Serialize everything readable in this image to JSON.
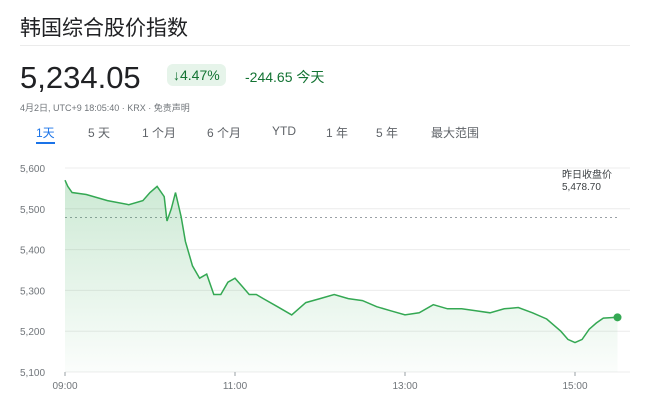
{
  "title": "韩国综合股价指数",
  "price": "5,234.05",
  "change_pct": "4.47%",
  "change_abs": "-244.65",
  "change_period": "今天",
  "meta": "4月2日, UTC+9 18:05:40 · KRX · 免责声明",
  "tabs": [
    "1天",
    "5 天",
    "1 个月",
    "6 个月",
    "YTD",
    "1 年",
    "5 年",
    "最大范围"
  ],
  "active_tab": "1天",
  "prev_close": {
    "label": "昨日收盘价",
    "value": "5,478.70"
  },
  "colors": {
    "down": "#137333",
    "line": "#34a853"
  },
  "chart_data": {
    "type": "area",
    "yticks": [
      "5,600",
      "5,500",
      "5,400",
      "5,300",
      "5,200",
      "5,100"
    ],
    "xticks": [
      "09:00",
      "11:00",
      "13:00",
      "15:00"
    ],
    "ylim": [
      5100,
      5600
    ],
    "xlim": [
      "09:00",
      "15:30"
    ],
    "reference_line": 5478.7,
    "grid": true,
    "points": [
      [
        "09:00",
        5570
      ],
      [
        "09:02",
        5555
      ],
      [
        "09:05",
        5540
      ],
      [
        "09:15",
        5535
      ],
      [
        "09:30",
        5520
      ],
      [
        "09:45",
        5510
      ],
      [
        "09:55",
        5520
      ],
      [
        "10:00",
        5540
      ],
      [
        "10:05",
        5555
      ],
      [
        "10:10",
        5530
      ],
      [
        "10:12",
        5470
      ],
      [
        "10:15",
        5500
      ],
      [
        "10:18",
        5540
      ],
      [
        "10:22",
        5480
      ],
      [
        "10:25",
        5420
      ],
      [
        "10:30",
        5360
      ],
      [
        "10:35",
        5330
      ],
      [
        "10:40",
        5340
      ],
      [
        "10:45",
        5290
      ],
      [
        "10:50",
        5290
      ],
      [
        "10:55",
        5320
      ],
      [
        "11:00",
        5330
      ],
      [
        "11:05",
        5310
      ],
      [
        "11:10",
        5290
      ],
      [
        "11:15",
        5290
      ],
      [
        "11:20",
        5280
      ],
      [
        "11:30",
        5260
      ],
      [
        "11:40",
        5240
      ],
      [
        "11:50",
        5270
      ],
      [
        "12:00",
        5280
      ],
      [
        "12:10",
        5290
      ],
      [
        "12:20",
        5280
      ],
      [
        "12:30",
        5275
      ],
      [
        "12:40",
        5260
      ],
      [
        "12:50",
        5250
      ],
      [
        "13:00",
        5240
      ],
      [
        "13:10",
        5245
      ],
      [
        "13:20",
        5265
      ],
      [
        "13:30",
        5255
      ],
      [
        "13:40",
        5255
      ],
      [
        "13:50",
        5250
      ],
      [
        "14:00",
        5245
      ],
      [
        "14:10",
        5255
      ],
      [
        "14:20",
        5258
      ],
      [
        "14:30",
        5245
      ],
      [
        "14:40",
        5230
      ],
      [
        "14:50",
        5200
      ],
      [
        "14:55",
        5180
      ],
      [
        "15:00",
        5172
      ],
      [
        "15:05",
        5180
      ],
      [
        "15:10",
        5205
      ],
      [
        "15:15",
        5220
      ],
      [
        "15:20",
        5232
      ],
      [
        "15:30",
        5234
      ]
    ]
  }
}
